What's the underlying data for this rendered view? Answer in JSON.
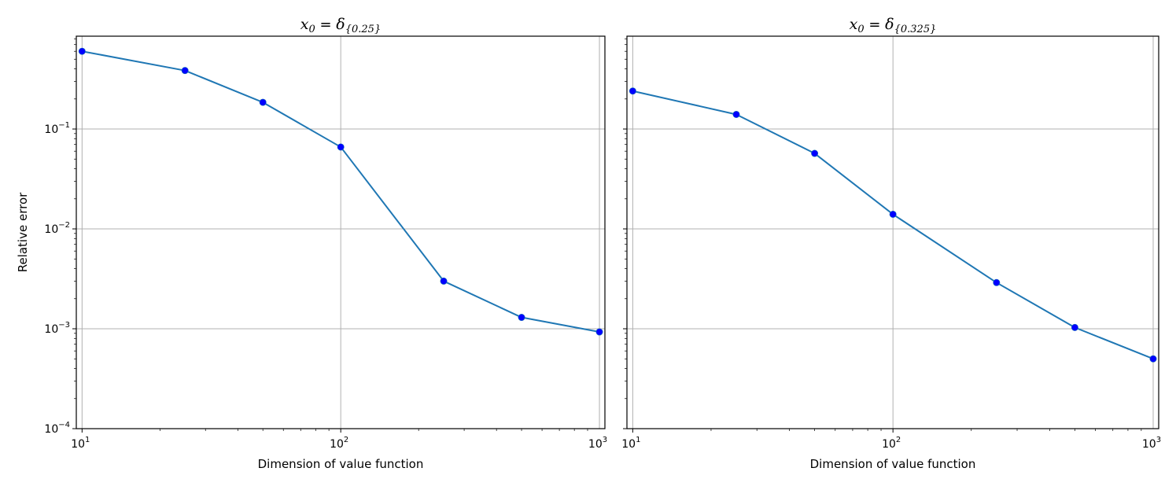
{
  "chart_data": [
    {
      "type": "line",
      "title": {
        "main": "x",
        "main_sub": "0",
        "op": " = ",
        "symbol": "δ",
        "symbol_sub": "{0.25}"
      },
      "xlabel": "Dimension of value function",
      "ylabel": "Relative error",
      "xscale": "log",
      "yscale": "log",
      "xlim": [
        9.5,
        1050
      ],
      "ylim": [
        0.0001,
        0.85
      ],
      "grid": true,
      "x_ticks": [
        {
          "base": "10",
          "exp": "1"
        },
        {
          "base": "10",
          "exp": "2"
        },
        {
          "base": "10",
          "exp": "3"
        }
      ],
      "y_ticks": [
        {
          "base": "10",
          "exp": "−4"
        },
        {
          "base": "10",
          "exp": "−3"
        },
        {
          "base": "10",
          "exp": "−2"
        },
        {
          "base": "10",
          "exp": "−1"
        }
      ],
      "series": [
        {
          "x": [
            10,
            25,
            50,
            100,
            250,
            500,
            1000
          ],
          "y": [
            0.6,
            0.385,
            0.185,
            0.066,
            0.003,
            0.0013,
            0.00093
          ],
          "color": "#1f77b4",
          "marker_color": "#0000ff"
        }
      ]
    },
    {
      "type": "line",
      "title": {
        "main": "x",
        "main_sub": "0",
        "op": " = ",
        "symbol": "δ",
        "symbol_sub": "{0.325}"
      },
      "xlabel": "Dimension of value function",
      "ylabel": "",
      "xscale": "log",
      "yscale": "log",
      "xlim": [
        9.5,
        1050
      ],
      "ylim": [
        0.0001,
        0.85
      ],
      "grid": true,
      "x_ticks": [
        {
          "base": "10",
          "exp": "1"
        },
        {
          "base": "10",
          "exp": "2"
        },
        {
          "base": "10",
          "exp": "3"
        }
      ],
      "y_ticks": [],
      "series": [
        {
          "x": [
            10,
            25,
            50,
            100,
            250,
            500,
            1000
          ],
          "y": [
            0.24,
            0.14,
            0.057,
            0.014,
            0.0029,
            0.00103,
            0.0005
          ],
          "color": "#1f77b4",
          "marker_color": "#0000ff"
        }
      ]
    }
  ]
}
